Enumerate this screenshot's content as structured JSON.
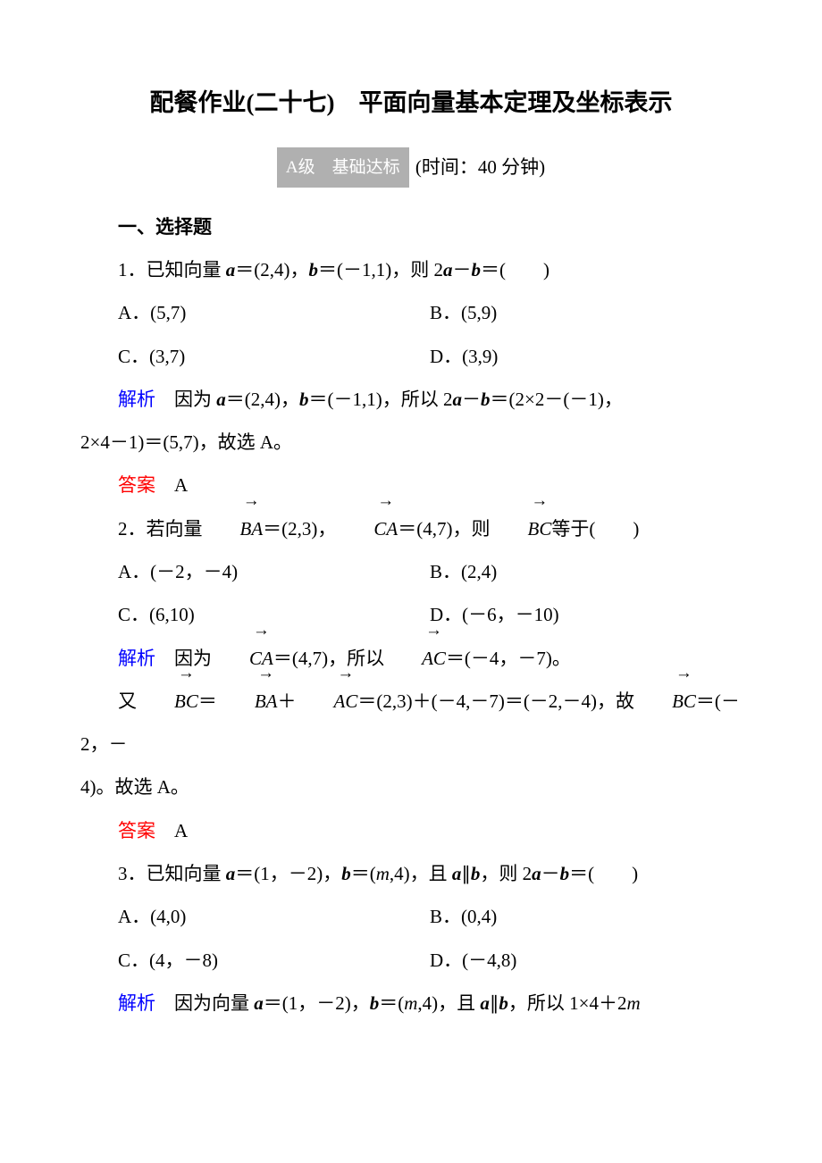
{
  "title": "配餐作业(二十七)　平面向量基本定理及坐标表示",
  "level_badge": "A级　基础达标",
  "time_note": "(时间：40 分钟)",
  "section_heading": "一、选择题",
  "labels": {
    "explain": "解析",
    "answer": "答案"
  },
  "colors": {
    "explain_color": "#0000ff",
    "answer_color": "#ff0000",
    "badge_bg": "#b0b0b0",
    "badge_fg": "#ffffff"
  },
  "q1": {
    "stem_pre": "1．已知向量 ",
    "stem_a": "a",
    "stem_eq1": "＝(2,4)，",
    "stem_b": "b",
    "stem_eq2": "＝(－1,1)，则 2",
    "stem_a2": "a",
    "stem_minus": "－",
    "stem_b2": "b",
    "stem_tail": "＝(　　)",
    "optA": "A．(5,7)",
    "optB": "B．(5,9)",
    "optC": "C．(3,7)",
    "optD": "D．(3,9)",
    "exp_1": "因为 ",
    "exp_a": "a",
    "exp_2": "＝(2,4)，",
    "exp_b": "b",
    "exp_3": "＝(－1,1)，所以 2",
    "exp_a2": "a",
    "exp_4": "－",
    "exp_b2": "b",
    "exp_5": "＝(2×2－(－1)，",
    "exp_cont": "2×4－1)＝(5,7)，故选 A。",
    "ans": "A"
  },
  "q2": {
    "stem_pre": "2．若向量",
    "vec_BA": "BA",
    "stem_mid1": "＝(2,3)，",
    "vec_CA": "CA",
    "stem_mid2": "＝(4,7)，则",
    "vec_BC": "BC",
    "stem_tail": "等于(　　)",
    "optA": "A．(－2，－4)",
    "optB": "B．(2,4)",
    "optC": "C．(6,10)",
    "optD": "D．(－6，－10)",
    "exp_1": "因为",
    "exp_CA": "CA",
    "exp_2": "＝(4,7)，所以",
    "exp_AC": "AC",
    "exp_3": "＝(－4，－7)。",
    "exp2_1": "又",
    "exp2_BC": "BC",
    "exp2_2": "＝",
    "exp2_BA": "BA",
    "exp2_3": "＋",
    "exp2_AC": "AC",
    "exp2_4": "＝(2,3)＋(－4,－7)＝(－2,－4)，故",
    "exp2_BC2": "BC",
    "exp2_5": "＝(－2，－",
    "exp2_cont": "4)。故选 A。",
    "ans": "A"
  },
  "q3": {
    "stem_pre": "3．已知向量 ",
    "stem_a": "a",
    "stem_1": "＝(1，－2)，",
    "stem_b": "b",
    "stem_2": "＝(",
    "stem_m": "m",
    "stem_3": ",4)，且 ",
    "stem_a2": "a",
    "stem_par": "∥",
    "stem_b2": "b",
    "stem_4": "，则 2",
    "stem_a3": "a",
    "stem_minus": "－",
    "stem_b3": "b",
    "stem_tail": "＝(　　)",
    "optA": "A．(4,0)",
    "optB": "B．(0,4)",
    "optC": "C．(4，－8)",
    "optD": "D．(－4,8)",
    "exp_1": "因为向量 ",
    "exp_a": "a",
    "exp_2": "＝(1，－2)，",
    "exp_b": "b",
    "exp_3": "＝(",
    "exp_m": "m",
    "exp_4": ",4)，且 ",
    "exp_a2": "a",
    "exp_par": "∥",
    "exp_b2": "b",
    "exp_5": "，所以 1×4＋2",
    "exp_m2": "m"
  }
}
